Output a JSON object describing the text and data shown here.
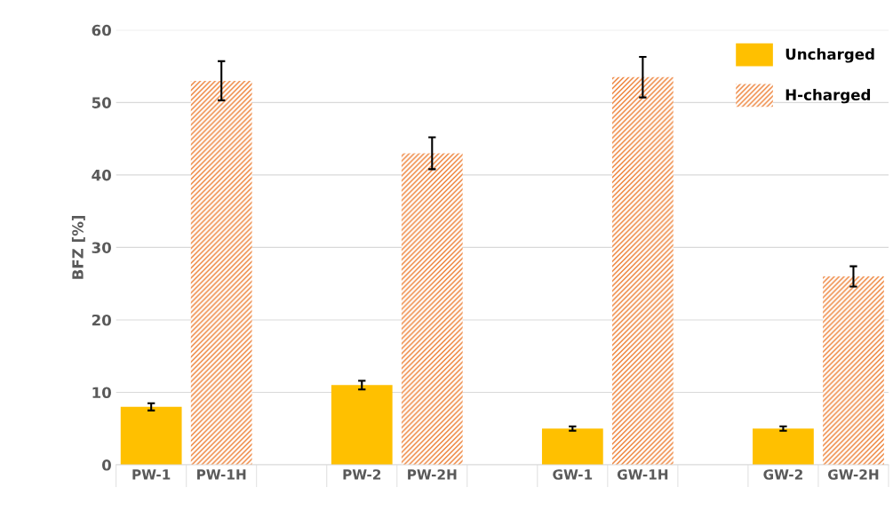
{
  "chart_data": {
    "type": "bar",
    "ylabel": "BFZ [%]",
    "categories": [
      "PW-1",
      "PW-1H",
      null,
      "PW-2",
      "PW-2H",
      null,
      "GW-1",
      "GW-1H",
      null,
      "GW-2",
      "GW-2H"
    ],
    "series": [
      {
        "name": "Uncharged",
        "color": "#ffc000",
        "values": [
          8,
          null,
          null,
          11,
          null,
          null,
          5,
          null,
          null,
          5,
          null
        ],
        "errors": [
          0.5,
          null,
          null,
          0.6,
          null,
          null,
          0.3,
          null,
          null,
          0.3,
          null
        ]
      },
      {
        "name": "H-charged",
        "color": "#ed7d31",
        "values": [
          null,
          53,
          null,
          null,
          43,
          null,
          null,
          53.5,
          null,
          null,
          26
        ],
        "errors": [
          null,
          2.7,
          null,
          null,
          2.2,
          null,
          null,
          2.8,
          null,
          null,
          1.4
        ]
      }
    ],
    "ylim": [
      0,
      60
    ],
    "yticks": [
      0,
      10,
      20,
      30,
      40,
      50,
      60
    ],
    "grid": "y",
    "legend": "top right"
  }
}
